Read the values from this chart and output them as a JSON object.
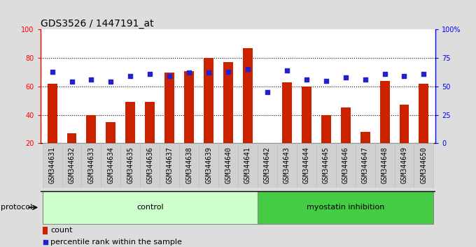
{
  "title": "GDS3526 / 1447191_at",
  "samples": [
    "GSM344631",
    "GSM344632",
    "GSM344633",
    "GSM344634",
    "GSM344635",
    "GSM344636",
    "GSM344637",
    "GSM344638",
    "GSM344639",
    "GSM344640",
    "GSM344641",
    "GSM344642",
    "GSM344643",
    "GSM344644",
    "GSM344645",
    "GSM344646",
    "GSM344647",
    "GSM344648",
    "GSM344649",
    "GSM344650"
  ],
  "counts": [
    62,
    27,
    40,
    35,
    49,
    49,
    70,
    71,
    80,
    77,
    87,
    20,
    63,
    60,
    40,
    45,
    28,
    64,
    47,
    62
  ],
  "percentiles": [
    63,
    54,
    56,
    54,
    59,
    61,
    59,
    62,
    62,
    63,
    65,
    45,
    64,
    56,
    55,
    58,
    56,
    61,
    59,
    61
  ],
  "bar_color": "#cc2200",
  "dot_color": "#2222cc",
  "control_bg": "#ccffcc",
  "myostatin_bg": "#44cc44",
  "fig_bg": "#dddddd",
  "plot_bg": "#ffffff",
  "xtick_bg": "#c8c8c8",
  "control_count": 11,
  "total_count": 20,
  "ylim_left": [
    20,
    100
  ],
  "ylim_right": [
    0,
    100
  ],
  "yticks_left": [
    20,
    40,
    60,
    80,
    100
  ],
  "yticks_right": [
    0,
    25,
    50,
    75,
    100
  ],
  "ytick_labels_right": [
    "0",
    "25",
    "50",
    "75",
    "100%"
  ],
  "protocol_label": "protocol",
  "control_label": "control",
  "myostatin_label": "myostatin inhibition",
  "legend_count_label": "count",
  "legend_percentile_label": "percentile rank within the sample",
  "title_fontsize": 10,
  "tick_fontsize": 7,
  "label_fontsize": 8,
  "bar_width": 0.5
}
